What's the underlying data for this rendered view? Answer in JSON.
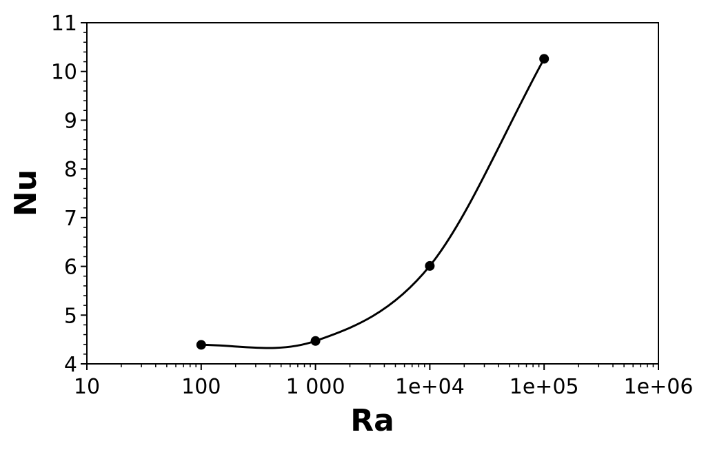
{
  "chart_data": {
    "type": "scatter",
    "xlabel": "Ra",
    "ylabel": "Nu",
    "x_scale": "log",
    "xlim": [
      10,
      1000000
    ],
    "ylim": [
      4,
      11
    ],
    "x_ticks": [
      {
        "value": 10,
        "label": "10"
      },
      {
        "value": 100,
        "label": "100"
      },
      {
        "value": 1000,
        "label": "1 000"
      },
      {
        "value": 10000,
        "label": "1e+04"
      },
      {
        "value": 100000,
        "label": "1e+05"
      },
      {
        "value": 1000000,
        "label": "1e+06"
      }
    ],
    "y_ticks": [
      {
        "value": 4,
        "label": "4"
      },
      {
        "value": 5,
        "label": "5"
      },
      {
        "value": 6,
        "label": "6"
      },
      {
        "value": 7,
        "label": "7"
      },
      {
        "value": 8,
        "label": "8"
      },
      {
        "value": 9,
        "label": "9"
      },
      {
        "value": 10,
        "label": "10"
      },
      {
        "value": 11,
        "label": "11"
      }
    ],
    "series": [
      {
        "x": [
          100,
          1000,
          10000,
          100000
        ],
        "y": [
          4.39,
          4.47,
          6.01,
          10.26
        ],
        "markers": true,
        "smooth_fit_line": true
      }
    ],
    "grid": false,
    "legend": "none"
  }
}
